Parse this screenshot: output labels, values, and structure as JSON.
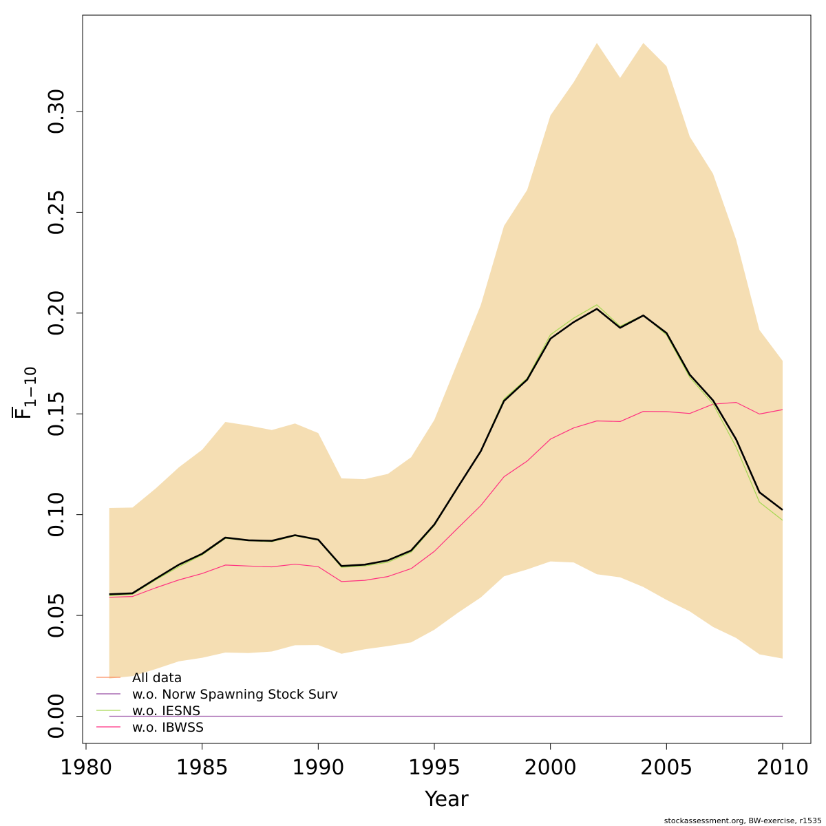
{
  "chart_data": {
    "type": "line",
    "xlabel": "Year",
    "ylabel_main": "F",
    "ylabel_sub": "1−10",
    "xlim": [
      1980,
      2010
    ],
    "ylim": [
      0.0,
      0.34
    ],
    "xticks": [
      1980,
      1985,
      1990,
      1995,
      2000,
      2005,
      2010
    ],
    "yticks": [
      0.0,
      0.05,
      0.1,
      0.15,
      0.2,
      0.25,
      0.3
    ],
    "ytick_labels": [
      "0.00",
      "0.05",
      "0.10",
      "0.15",
      "0.20",
      "0.25",
      "0.30"
    ],
    "x": [
      1981,
      1982,
      1983,
      1984,
      1985,
      1986,
      1987,
      1988,
      1989,
      1990,
      1991,
      1992,
      1993,
      1994,
      1995,
      1996,
      1997,
      1998,
      1999,
      2000,
      2001,
      2002,
      2003,
      2004,
      2005,
      2006,
      2007,
      2008,
      2009,
      2010
    ],
    "band": {
      "color": "#f5deb3",
      "upper": [
        0.1033,
        0.1035,
        0.113,
        0.1235,
        0.1322,
        0.146,
        0.1442,
        0.142,
        0.1452,
        0.1405,
        0.118,
        0.1176,
        0.1202,
        0.1285,
        0.147,
        0.1755,
        0.204,
        0.2432,
        0.2611,
        0.2981,
        0.3145,
        0.334,
        0.3167,
        0.334,
        0.3225,
        0.2875,
        0.2692,
        0.2364,
        0.1916,
        0.1763
      ],
      "lower": [
        0.0187,
        0.0199,
        0.0234,
        0.0272,
        0.029,
        0.0316,
        0.0313,
        0.0321,
        0.0352,
        0.0353,
        0.031,
        0.0332,
        0.0348,
        0.0366,
        0.0429,
        0.0512,
        0.0589,
        0.0694,
        0.0728,
        0.0768,
        0.0763,
        0.0704,
        0.0689,
        0.0641,
        0.0577,
        0.052,
        0.0443,
        0.0388,
        0.0307,
        0.0286
      ]
    },
    "series": [
      {
        "name": "All data",
        "color": "#000000",
        "width": 2.6,
        "values": [
          0.0605,
          0.061,
          0.0682,
          0.0752,
          0.0806,
          0.0886,
          0.0873,
          0.087,
          0.0898,
          0.0876,
          0.0745,
          0.0752,
          0.0773,
          0.0822,
          0.0951,
          0.1134,
          0.1315,
          0.1564,
          0.167,
          0.1873,
          0.1955,
          0.2021,
          0.1927,
          0.1988,
          0.1901,
          0.1694,
          0.1567,
          0.1373,
          0.1111,
          0.1023
        ]
      },
      {
        "name": "w.o. Norw Spawning Stock Surv",
        "color": "#984ea3",
        "width": 1.2,
        "values": [
          0,
          0,
          0,
          0,
          0,
          0,
          0,
          0,
          0,
          0,
          0,
          0,
          0,
          0,
          0,
          0,
          0,
          0,
          0,
          0,
          0,
          0,
          0,
          0,
          0,
          0,
          0,
          0,
          0,
          0
        ]
      },
      {
        "name": "w.o. IESNS",
        "color": "#a6d854",
        "width": 1.2,
        "values": [
          0.0598,
          0.0605,
          0.0676,
          0.0742,
          0.08,
          0.0882,
          0.087,
          0.0866,
          0.0895,
          0.0873,
          0.0739,
          0.0745,
          0.0764,
          0.0814,
          0.0946,
          0.113,
          0.1318,
          0.1574,
          0.1677,
          0.1893,
          0.1975,
          0.2041,
          0.1935,
          0.199,
          0.1892,
          0.1681,
          0.155,
          0.1335,
          0.1062,
          0.0972
        ]
      },
      {
        "name": "w.o. IBWSS",
        "color": "#ff2f80",
        "width": 1.2,
        "values": [
          0.059,
          0.0594,
          0.0637,
          0.0676,
          0.0708,
          0.075,
          0.0745,
          0.0741,
          0.0754,
          0.0742,
          0.0668,
          0.0674,
          0.0693,
          0.0732,
          0.0818,
          0.0932,
          0.1045,
          0.1188,
          0.1266,
          0.1375,
          0.143,
          0.1465,
          0.1462,
          0.1512,
          0.1511,
          0.1502,
          0.1548,
          0.1557,
          0.1499,
          0.1521
        ]
      }
    ],
    "legend": {
      "placement": "bottom-left",
      "entries": [
        {
          "label": "All data",
          "color": "#fc8d62"
        },
        {
          "label": "w.o. Norw Spawning Stock Surv",
          "color": "#984ea3"
        },
        {
          "label": "w.o. IESNS",
          "color": "#a6d854"
        },
        {
          "label": "w.o. IBWSS",
          "color": "#ff2f80"
        }
      ]
    },
    "grid": false
  },
  "footer": "stockassessment.org, BW-exercise, r1535"
}
